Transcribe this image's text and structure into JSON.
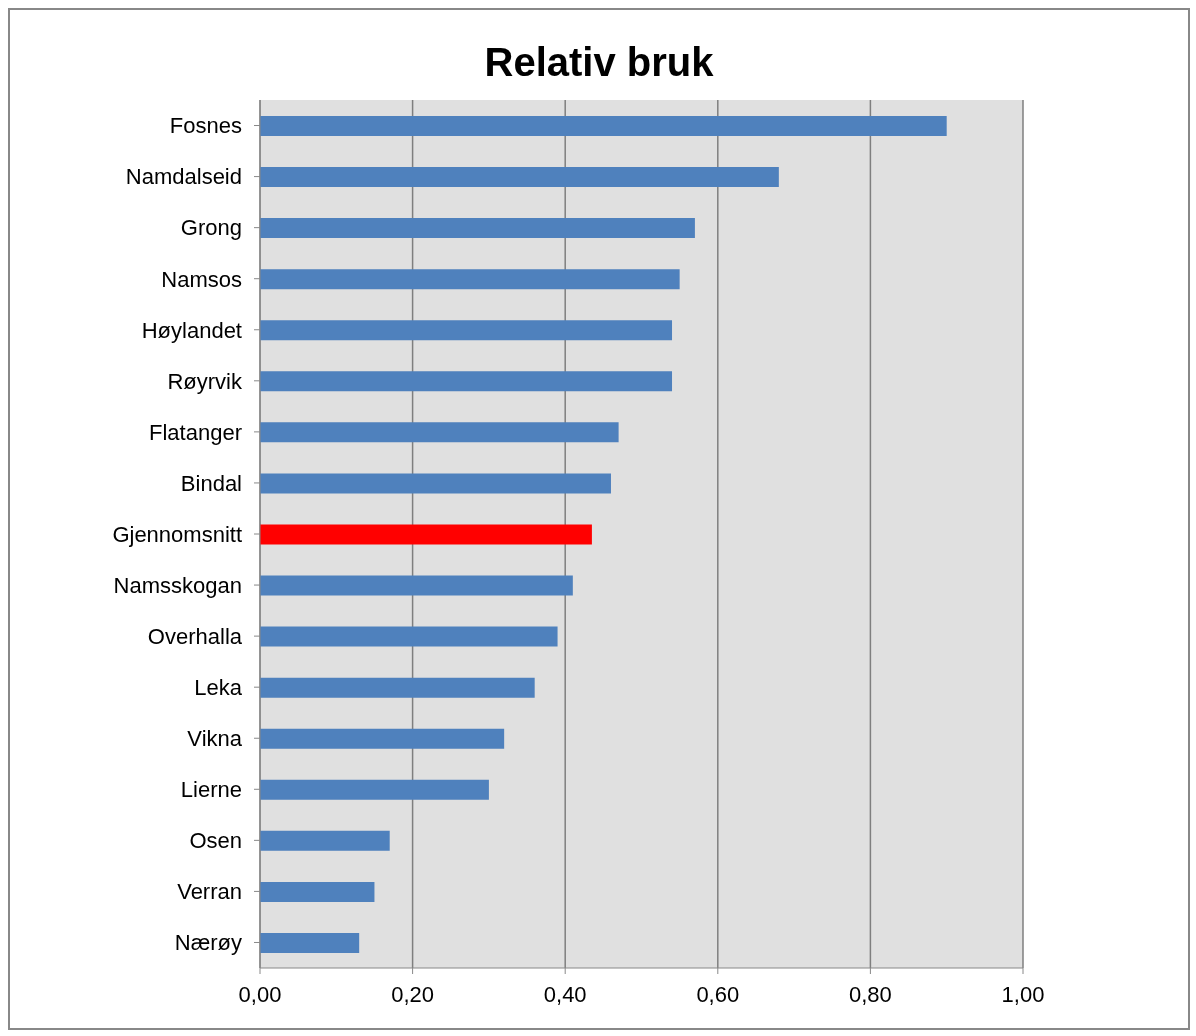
{
  "chart_data": {
    "type": "bar",
    "orientation": "horizontal",
    "title": "Relativ bruk",
    "categories": [
      "Fosnes",
      "Namdalseid",
      "Grong",
      "Namsos",
      "Høylandet",
      "Røyrvik",
      "Flatanger",
      "Bindal",
      "Gjennomsnitt",
      "Namsskogan",
      "Overhalla",
      "Leka",
      "Vikna",
      "Lierne",
      "Osen",
      "Verran",
      "Nærøy"
    ],
    "values": [
      0.9,
      0.68,
      0.57,
      0.55,
      0.54,
      0.54,
      0.47,
      0.46,
      0.435,
      0.41,
      0.39,
      0.36,
      0.32,
      0.3,
      0.17,
      0.15,
      0.13
    ],
    "colors": [
      "#4f81bd",
      "#4f81bd",
      "#4f81bd",
      "#4f81bd",
      "#4f81bd",
      "#4f81bd",
      "#4f81bd",
      "#4f81bd",
      "#ff0000",
      "#4f81bd",
      "#4f81bd",
      "#4f81bd",
      "#4f81bd",
      "#4f81bd",
      "#4f81bd",
      "#4f81bd",
      "#4f81bd"
    ],
    "xlim": [
      0,
      1
    ],
    "xticks": [
      {
        "value": 0,
        "label": "0,00"
      },
      {
        "value": 0.2,
        "label": "0,20"
      },
      {
        "value": 0.4,
        "label": "0,40"
      },
      {
        "value": 0.6,
        "label": "0,60"
      },
      {
        "value": 0.8,
        "label": "0,80"
      },
      {
        "value": 1,
        "label": "1,00"
      }
    ],
    "grid": "x"
  }
}
